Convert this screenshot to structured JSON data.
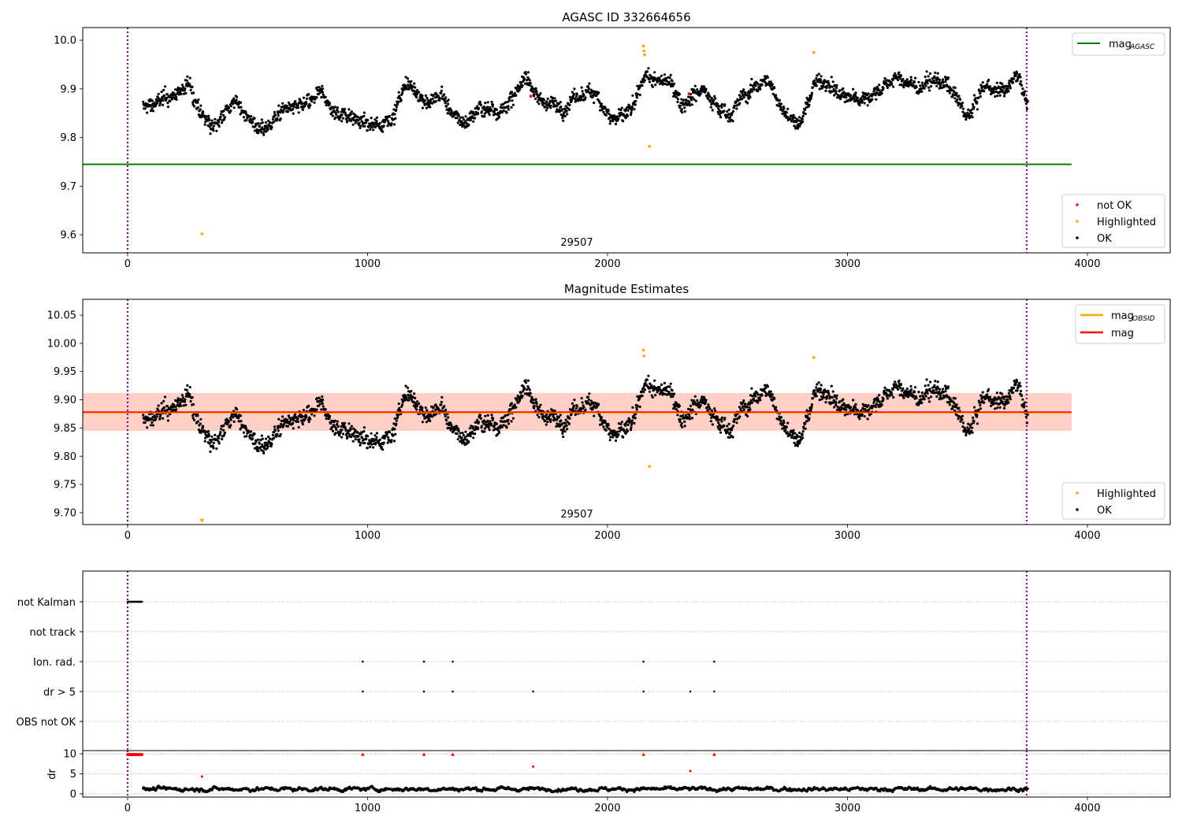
{
  "chart_data": [
    {
      "type": "scatter",
      "title": "AGASC ID 332664656",
      "xlim": [
        -187,
        4345
      ],
      "ylim": [
        9.563,
        10.026
      ],
      "xticks": [
        "0",
        "1000",
        "2000",
        "3000",
        "4000"
      ],
      "xtick_values": [
        0,
        1000,
        2000,
        3000,
        4000
      ],
      "yticks": [
        "9.6",
        "9.7",
        "9.8",
        "9.9",
        "10.0"
      ],
      "ytick_values": [
        9.6,
        9.7,
        9.8,
        9.9,
        10.0
      ],
      "obsid_label": "29507",
      "obsid_label_x": 1872,
      "obsid_label_y": 9.58,
      "mag_agasc": 9.745,
      "mag_agasc_xrange": [
        -187,
        3934
      ],
      "vlines": [
        0,
        3747
      ],
      "legend_upper": [
        {
          "label": "mag",
          "sub": "AGASC",
          "color": "#008000"
        }
      ],
      "legend_lower": [
        {
          "label": "not OK",
          "color": "#ff0000"
        },
        {
          "label": "Highlighted",
          "color": "#ffa500"
        },
        {
          "label": "OK",
          "color": "#000000"
        }
      ],
      "ok_trend": {
        "x_start": 60,
        "x_step": 50,
        "values": [
          9.86,
          9.87,
          9.88,
          9.89,
          9.91,
          9.84,
          9.82,
          9.86,
          9.87,
          9.84,
          9.81,
          9.84,
          9.86,
          9.86,
          9.87,
          9.89,
          9.85,
          9.85,
          9.84,
          9.82,
          9.83,
          9.85,
          9.91,
          9.89,
          9.87,
          9.89,
          9.84,
          9.83,
          9.86,
          9.86,
          9.86,
          9.88,
          9.93,
          9.88,
          9.87,
          9.86,
          9.88,
          9.89,
          9.89,
          9.84,
          9.84,
          9.86,
          9.93,
          9.91,
          9.92,
          9.87,
          9.89,
          9.9,
          9.86,
          9.85,
          9.88,
          9.9,
          9.92,
          9.88,
          9.84,
          9.83,
          9.91,
          9.92,
          9.89,
          9.88,
          9.88,
          9.89,
          9.91,
          9.92,
          9.91,
          9.9,
          9.92,
          9.91,
          9.87,
          9.84,
          9.9,
          9.9,
          9.9,
          9.93,
          9.86
        ]
      },
      "highlighted": [
        [
          310,
          9.602
        ],
        [
          2150,
          9.988
        ],
        [
          2152,
          9.978
        ],
        [
          2155,
          9.97
        ],
        [
          2175,
          9.782
        ],
        [
          2860,
          9.975
        ]
      ],
      "not_ok": [
        [
          1680,
          9.885
        ],
        [
          2340,
          9.89
        ]
      ]
    },
    {
      "type": "scatter",
      "title": "Magnitude Estimates",
      "xlim": [
        -187,
        4345
      ],
      "ylim": [
        9.679,
        10.078
      ],
      "xticks": [
        "0",
        "1000",
        "2000",
        "3000",
        "4000"
      ],
      "xtick_values": [
        0,
        1000,
        2000,
        3000,
        4000
      ],
      "yticks": [
        "9.70",
        "9.75",
        "9.80",
        "9.85",
        "9.90",
        "9.95",
        "10.00",
        "10.05"
      ],
      "ytick_values": [
        9.7,
        9.75,
        9.8,
        9.85,
        9.9,
        9.95,
        10.0,
        10.05
      ],
      "obsid_label": "29507",
      "mag": 9.878,
      "mag_band": [
        9.845,
        9.912
      ],
      "mag_xrange": [
        -187,
        3934
      ],
      "legend_upper": [
        {
          "label": "mag",
          "sub": "OBSID",
          "color": "#ffa500"
        },
        {
          "label": "mag",
          "color": "#ff0000"
        }
      ],
      "legend_lower": [
        {
          "label": "Highlighted",
          "color": "#ffa500"
        },
        {
          "label": "OK",
          "color": "#000000"
        }
      ],
      "highlighted": [
        [
          310,
          9.685
        ],
        [
          2150,
          9.988
        ],
        [
          2152,
          9.978
        ],
        [
          2175,
          9.782
        ],
        [
          2860,
          9.975
        ]
      ]
    },
    {
      "type": "scatter",
      "title": "",
      "categories": [
        "not Kalman",
        "not track",
        "Ion. rad.",
        "dr > 5",
        "OBS not OK"
      ],
      "not_kalman_xrange": [
        0,
        60
      ],
      "ion_rad": [
        980,
        1235,
        1355,
        2150,
        2445
      ],
      "dr_gt_5": [
        980,
        1235,
        1355,
        1690,
        2150,
        2345,
        2445
      ]
    },
    {
      "type": "scatter",
      "ylabel": "dr",
      "ylim": [
        -0.8,
        10.8
      ],
      "yticks": [
        "0",
        "5",
        "10"
      ],
      "ytick_values": [
        0,
        5,
        10
      ],
      "xticks": [
        "0",
        "1000",
        "2000",
        "3000",
        "4000"
      ],
      "xtick_values": [
        0,
        1000,
        2000,
        3000,
        4000
      ],
      "red_points": [
        [
          980,
          10
        ],
        [
          1235,
          10
        ],
        [
          1355,
          10
        ],
        [
          2150,
          10
        ],
        [
          2445,
          10
        ],
        [
          1690,
          6.8
        ],
        [
          2345,
          5.7
        ],
        [
          310,
          4.3
        ]
      ],
      "red_clipped_xrange": [
        0,
        60
      ],
      "ok_dr_range": [
        0.5,
        2.5
      ]
    }
  ]
}
